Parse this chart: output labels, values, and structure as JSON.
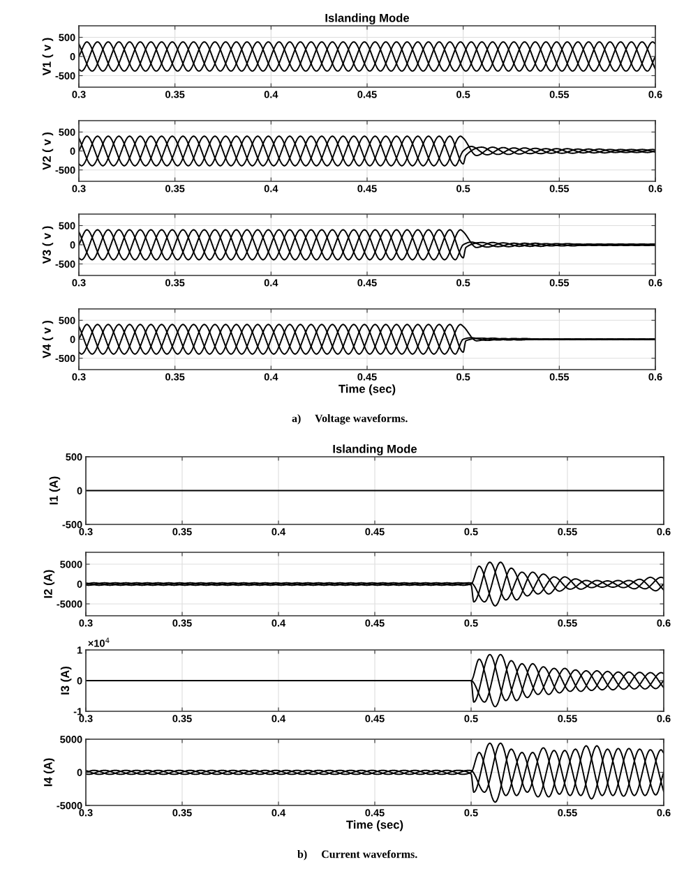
{
  "chart_data": [
    {
      "type": "line",
      "title": "Islanding Mode",
      "ylabel": "V1 ( v )",
      "xlim": [
        0.3,
        0.6
      ],
      "ylim": [
        -800,
        800
      ],
      "xticks": [
        0.3,
        0.35,
        0.4,
        0.45,
        0.5,
        0.55,
        0.6
      ],
      "yticks": [
        -500,
        0,
        500
      ],
      "grid": true,
      "series": [
        {
          "color": "#000000",
          "x": [
            0.3,
            0.30417,
            0.3125,
            0.32083,
            0.32917,
            0.3375,
            0.34583,
            0.35417,
            0.3625,
            0.37083,
            0.37917,
            0.3875,
            0.39583,
            0.40417,
            0.4125,
            0.42083,
            0.42917,
            0.4375,
            0.44583,
            0.45417,
            0.4625,
            0.47083,
            0.47917,
            0.4875,
            0.49583,
            0.50417,
            0.5125,
            0.52083,
            0.52917,
            0.5375,
            0.54583,
            0.55417,
            0.5625,
            0.57083,
            0.57917,
            0.5875,
            0.59583,
            0.6
          ],
          "values": [
            0,
            380,
            -380,
            380,
            -380,
            380,
            -380,
            380,
            -380,
            380,
            -380,
            380,
            -380,
            380,
            -380,
            380,
            -380,
            380,
            -380,
            380,
            -380,
            380,
            -380,
            380,
            -380,
            380,
            -380,
            380,
            -380,
            380,
            -380,
            380,
            -380,
            380,
            -380,
            380,
            -380,
            0
          ]
        },
        {
          "color": "#000000",
          "x": [
            0.3,
            0.30139,
            0.30972,
            0.31806,
            0.32639,
            0.33472,
            0.34306,
            0.35139,
            0.35972,
            0.36806,
            0.37639,
            0.38472,
            0.39306,
            0.40139,
            0.40972,
            0.41806,
            0.42639,
            0.43472,
            0.44306,
            0.45139,
            0.45972,
            0.46806,
            0.47639,
            0.48472,
            0.49306,
            0.50139,
            0.50972,
            0.51806,
            0.52639,
            0.53472,
            0.54306,
            0.55139,
            0.55972,
            0.56806,
            0.57639,
            0.58472,
            0.59306,
            0.6
          ],
          "values": [
            -330,
            -380,
            380,
            -380,
            380,
            -380,
            380,
            -380,
            380,
            -380,
            380,
            -380,
            380,
            -380,
            380,
            -380,
            380,
            -380,
            380,
            -380,
            380,
            -380,
            380,
            -380,
            380,
            -380,
            380,
            -380,
            380,
            -380,
            380,
            -380,
            380,
            -380,
            380,
            -380,
            380,
            -330
          ]
        },
        {
          "color": "#000000",
          "x": [
            0.3,
            0.30694,
            0.31528,
            0.32361,
            0.33194,
            0.34028,
            0.34861,
            0.35694,
            0.36528,
            0.37361,
            0.38194,
            0.39028,
            0.39861,
            0.40694,
            0.41528,
            0.42361,
            0.43194,
            0.44028,
            0.44861,
            0.45694,
            0.46528,
            0.47361,
            0.48194,
            0.49028,
            0.49861,
            0.50694,
            0.51528,
            0.52361,
            0.53194,
            0.54028,
            0.54861,
            0.55694,
            0.56528,
            0.57361,
            0.58194,
            0.59028,
            0.59861,
            0.6
          ],
          "values": [
            330,
            -380,
            380,
            -380,
            380,
            -380,
            380,
            -380,
            380,
            -380,
            380,
            -380,
            380,
            -380,
            380,
            -380,
            380,
            -380,
            380,
            -380,
            380,
            -380,
            380,
            -380,
            380,
            -380,
            380,
            -380,
            380,
            -380,
            380,
            -380,
            380,
            -380,
            380,
            -380,
            380,
            330
          ]
        }
      ]
    },
    {
      "type": "line",
      "ylabel": "V2 ( v )",
      "xlim": [
        0.3,
        0.6
      ],
      "ylim": [
        -800,
        800
      ],
      "xticks": [
        0.3,
        0.35,
        0.4,
        0.45,
        0.5,
        0.55,
        0.6
      ],
      "yticks": [
        -500,
        0,
        500
      ],
      "grid": true,
      "series": [
        {
          "color": "#000000",
          "x": [
            0.3,
            0.30417,
            0.3125,
            0.32083,
            0.32917,
            0.3375,
            0.34583,
            0.35417,
            0.3625,
            0.37083,
            0.37917,
            0.3875,
            0.39583,
            0.40417,
            0.4125,
            0.42083,
            0.42917,
            0.4375,
            0.44583,
            0.45417,
            0.4625,
            0.47083,
            0.47917,
            0.4875,
            0.49583,
            0.5,
            0.50417,
            0.5125,
            0.52083,
            0.52917,
            0.5375,
            0.54583,
            0.55417,
            0.5625,
            0.57083,
            0.57917,
            0.5875,
            0.59583,
            0.6
          ],
          "values": [
            0,
            390,
            -390,
            390,
            -390,
            390,
            -390,
            390,
            -390,
            390,
            -390,
            390,
            -390,
            390,
            -390,
            390,
            -390,
            390,
            -390,
            390,
            -390,
            390,
            -390,
            390,
            -390,
            0,
            120,
            -100,
            90,
            -80,
            70,
            -60,
            60,
            -50,
            50,
            -40,
            40,
            -40,
            0
          ]
        },
        {
          "color": "#000000",
          "x": [
            0.3,
            0.30139,
            0.30972,
            0.31806,
            0.32639,
            0.33472,
            0.34306,
            0.35139,
            0.35972,
            0.36806,
            0.37639,
            0.38472,
            0.39306,
            0.40139,
            0.40972,
            0.41806,
            0.42639,
            0.43472,
            0.44306,
            0.45139,
            0.45972,
            0.46806,
            0.47639,
            0.48472,
            0.49306,
            0.5,
            0.50139,
            0.50972,
            0.51806,
            0.52639,
            0.53472,
            0.54306,
            0.55139,
            0.55972,
            0.56806,
            0.57639,
            0.58472,
            0.59306,
            0.6
          ],
          "values": [
            -340,
            -390,
            390,
            -390,
            390,
            -390,
            390,
            -390,
            390,
            -390,
            390,
            -390,
            390,
            -390,
            390,
            -390,
            390,
            -390,
            390,
            -390,
            390,
            -390,
            390,
            -390,
            390,
            -340,
            -120,
            100,
            -90,
            80,
            -70,
            60,
            -60,
            50,
            -50,
            40,
            -40,
            40,
            -30
          ]
        },
        {
          "color": "#000000",
          "x": [
            0.3,
            0.30694,
            0.31528,
            0.32361,
            0.33194,
            0.34028,
            0.34861,
            0.35694,
            0.36528,
            0.37361,
            0.38194,
            0.39028,
            0.39861,
            0.40694,
            0.41528,
            0.42361,
            0.43194,
            0.44028,
            0.44861,
            0.45694,
            0.46528,
            0.47361,
            0.48194,
            0.49028,
            0.49861,
            0.5,
            0.50694,
            0.51528,
            0.52361,
            0.53194,
            0.54028,
            0.54861,
            0.55694,
            0.56528,
            0.57361,
            0.58194,
            0.59028,
            0.59861,
            0.6
          ],
          "values": [
            340,
            -390,
            390,
            -390,
            390,
            -390,
            390,
            -390,
            390,
            -390,
            390,
            -390,
            390,
            -390,
            390,
            -390,
            390,
            -390,
            390,
            -390,
            390,
            -390,
            390,
            -390,
            390,
            340,
            -120,
            100,
            -90,
            80,
            -70,
            60,
            -60,
            50,
            -50,
            40,
            -40,
            40,
            30
          ]
        }
      ]
    },
    {
      "type": "line",
      "ylabel": "V3 ( v )",
      "xlim": [
        0.3,
        0.6
      ],
      "ylim": [
        -800,
        800
      ],
      "xticks": [
        0.3,
        0.35,
        0.4,
        0.45,
        0.5,
        0.55,
        0.6
      ],
      "yticks": [
        -500,
        0,
        500
      ],
      "grid": true,
      "series": [
        {
          "color": "#000000",
          "x": [
            0.3,
            0.30417,
            0.3125,
            0.32083,
            0.32917,
            0.3375,
            0.34583,
            0.35417,
            0.3625,
            0.37083,
            0.37917,
            0.3875,
            0.39583,
            0.40417,
            0.4125,
            0.42083,
            0.42917,
            0.4375,
            0.44583,
            0.45417,
            0.4625,
            0.47083,
            0.47917,
            0.4875,
            0.49583,
            0.5,
            0.50417,
            0.5125,
            0.52083,
            0.52917,
            0.5375,
            0.54583,
            0.55417,
            0.5625,
            0.57083,
            0.57917,
            0.5875,
            0.59583,
            0.6
          ],
          "values": [
            0,
            390,
            -390,
            390,
            -390,
            390,
            -390,
            390,
            -390,
            390,
            -390,
            390,
            -390,
            390,
            -390,
            390,
            -390,
            390,
            -390,
            390,
            -390,
            390,
            -390,
            390,
            -390,
            0,
            70,
            -60,
            50,
            -40,
            40,
            -30,
            30,
            -20,
            20,
            -20,
            20,
            -20,
            0
          ]
        },
        {
          "color": "#000000",
          "x": [
            0.3,
            0.30139,
            0.30972,
            0.31806,
            0.32639,
            0.33472,
            0.34306,
            0.35139,
            0.35972,
            0.36806,
            0.37639,
            0.38472,
            0.39306,
            0.40139,
            0.40972,
            0.41806,
            0.42639,
            0.43472,
            0.44306,
            0.45139,
            0.45972,
            0.46806,
            0.47639,
            0.48472,
            0.49306,
            0.5,
            0.50139,
            0.50972,
            0.51806,
            0.52639,
            0.53472,
            0.54306,
            0.55139,
            0.55972,
            0.56806,
            0.57639,
            0.58472,
            0.59306,
            0.6
          ],
          "values": [
            -340,
            -390,
            390,
            -390,
            390,
            -390,
            390,
            -390,
            390,
            -390,
            390,
            -390,
            390,
            -390,
            390,
            -390,
            390,
            -390,
            390,
            -390,
            390,
            -390,
            390,
            -390,
            390,
            -340,
            -70,
            60,
            -50,
            40,
            -40,
            30,
            -30,
            20,
            -20,
            20,
            -20,
            20,
            -20
          ]
        },
        {
          "color": "#000000",
          "x": [
            0.3,
            0.30694,
            0.31528,
            0.32361,
            0.33194,
            0.34028,
            0.34861,
            0.35694,
            0.36528,
            0.37361,
            0.38194,
            0.39028,
            0.39861,
            0.40694,
            0.41528,
            0.42361,
            0.43194,
            0.44028,
            0.44861,
            0.45694,
            0.46528,
            0.47361,
            0.48194,
            0.49028,
            0.49861,
            0.5,
            0.50694,
            0.51528,
            0.52361,
            0.53194,
            0.54028,
            0.54861,
            0.55694,
            0.56528,
            0.57361,
            0.58194,
            0.59028,
            0.59861,
            0.6
          ],
          "values": [
            340,
            -390,
            390,
            -390,
            390,
            -390,
            390,
            -390,
            390,
            -390,
            390,
            -390,
            390,
            -390,
            390,
            -390,
            390,
            -390,
            390,
            -390,
            390,
            -390,
            390,
            -390,
            390,
            340,
            -70,
            60,
            -50,
            40,
            -40,
            30,
            -30,
            20,
            -20,
            20,
            -20,
            20,
            20
          ]
        }
      ]
    },
    {
      "type": "line",
      "ylabel": "V4 ( v )",
      "xlabel": "Time (sec)",
      "annotations": [
        "a)     Voltage waveforms."
      ],
      "xlim": [
        0.3,
        0.6
      ],
      "ylim": [
        -800,
        800
      ],
      "xticks": [
        0.3,
        0.35,
        0.4,
        0.45,
        0.5,
        0.55,
        0.6
      ],
      "yticks": [
        -500,
        0,
        500
      ],
      "grid": true,
      "series": [
        {
          "color": "#000000",
          "x": [
            0.3,
            0.30417,
            0.3125,
            0.32083,
            0.32917,
            0.3375,
            0.34583,
            0.35417,
            0.3625,
            0.37083,
            0.37917,
            0.3875,
            0.39583,
            0.40417,
            0.4125,
            0.42083,
            0.42917,
            0.4375,
            0.44583,
            0.45417,
            0.4625,
            0.47083,
            0.47917,
            0.4875,
            0.49583,
            0.5,
            0.50417,
            0.5125,
            0.52083,
            0.52917,
            0.5375,
            0.54583,
            0.55417,
            0.5625,
            0.57083,
            0.57917,
            0.5875,
            0.59583,
            0.6
          ],
          "values": [
            0,
            390,
            -390,
            390,
            -390,
            390,
            -390,
            390,
            -390,
            390,
            -390,
            390,
            -390,
            390,
            -390,
            390,
            -390,
            390,
            -390,
            390,
            -390,
            390,
            -390,
            390,
            -390,
            0,
            40,
            -30,
            20,
            -20,
            10,
            -10,
            10,
            -10,
            10,
            -10,
            10,
            -10,
            0
          ]
        },
        {
          "color": "#000000",
          "x": [
            0.3,
            0.30139,
            0.30972,
            0.31806,
            0.32639,
            0.33472,
            0.34306,
            0.35139,
            0.35972,
            0.36806,
            0.37639,
            0.38472,
            0.39306,
            0.40139,
            0.40972,
            0.41806,
            0.42639,
            0.43472,
            0.44306,
            0.45139,
            0.45972,
            0.46806,
            0.47639,
            0.48472,
            0.49306,
            0.5,
            0.50139,
            0.50972,
            0.51806,
            0.52639,
            0.53472,
            0.54306,
            0.55139,
            0.55972,
            0.56806,
            0.57639,
            0.58472,
            0.59306,
            0.6
          ],
          "values": [
            -340,
            -390,
            390,
            -390,
            390,
            -390,
            390,
            -390,
            390,
            -390,
            390,
            -390,
            390,
            -390,
            390,
            -390,
            390,
            -390,
            390,
            -390,
            390,
            -390,
            390,
            -390,
            390,
            -340,
            -40,
            30,
            -20,
            20,
            -10,
            10,
            -10,
            10,
            -10,
            10,
            -10,
            10,
            -10
          ]
        },
        {
          "color": "#000000",
          "x": [
            0.3,
            0.30694,
            0.31528,
            0.32361,
            0.33194,
            0.34028,
            0.34861,
            0.35694,
            0.36528,
            0.37361,
            0.38194,
            0.39028,
            0.39861,
            0.40694,
            0.41528,
            0.42361,
            0.43194,
            0.44028,
            0.44861,
            0.45694,
            0.46528,
            0.47361,
            0.48194,
            0.49028,
            0.49861,
            0.5,
            0.50694,
            0.51528,
            0.52361,
            0.53194,
            0.54028,
            0.54861,
            0.55694,
            0.56528,
            0.57361,
            0.58194,
            0.59028,
            0.59861,
            0.6
          ],
          "values": [
            340,
            -390,
            390,
            -390,
            390,
            -390,
            390,
            -390,
            390,
            -390,
            390,
            -390,
            390,
            -390,
            390,
            -390,
            390,
            -390,
            390,
            -390,
            390,
            -390,
            390,
            -390,
            390,
            340,
            -40,
            30,
            -20,
            20,
            -10,
            10,
            -10,
            10,
            -10,
            10,
            -10,
            10,
            10
          ]
        }
      ]
    },
    {
      "type": "line",
      "title": "Islanding Mode",
      "ylabel": "I1 (A)",
      "xlim": [
        0.3,
        0.6
      ],
      "ylim": [
        -500,
        500
      ],
      "xticks": [
        0.3,
        0.35,
        0.4,
        0.45,
        0.5,
        0.55,
        0.6
      ],
      "yticks": [
        -500,
        0,
        500
      ],
      "grid": true,
      "series": [
        {
          "color": "#000000",
          "x": [
            0.3,
            0.6
          ],
          "values": [
            0,
            0
          ]
        }
      ]
    },
    {
      "type": "line",
      "ylabel": "I2 (A)",
      "xlim": [
        0.3,
        0.6
      ],
      "ylim": [
        -8000,
        8000
      ],
      "xticks": [
        0.3,
        0.35,
        0.4,
        0.45,
        0.5,
        0.55,
        0.6
      ],
      "yticks": [
        -5000,
        0,
        5000
      ],
      "grid": true,
      "series": [
        {
          "color": "#000000",
          "x": [
            0.3,
            0.30417,
            0.3125,
            0.32083,
            0.32917,
            0.3375,
            0.34583,
            0.35417,
            0.3625,
            0.37083,
            0.37917,
            0.3875,
            0.39583,
            0.40417,
            0.4125,
            0.42083,
            0.42917,
            0.4375,
            0.44583,
            0.45417,
            0.4625,
            0.47083,
            0.47917,
            0.4875,
            0.49583,
            0.5,
            0.50417,
            0.5125,
            0.52083,
            0.52917,
            0.5375,
            0.54583,
            0.55417,
            0.5625,
            0.57083,
            0.57917,
            0.5875,
            0.59583,
            0.6
          ],
          "values": [
            0,
            300,
            -300,
            300,
            -300,
            300,
            -300,
            300,
            -300,
            300,
            -300,
            300,
            -300,
            300,
            -300,
            300,
            -300,
            300,
            -300,
            300,
            -300,
            300,
            -300,
            300,
            -300,
            0,
            4500,
            -5500,
            4000,
            -3000,
            2500,
            -1800,
            1300,
            -900,
            800,
            -900,
            1200,
            -1700,
            0
          ]
        },
        {
          "color": "#000000",
          "x": [
            0.3,
            0.30139,
            0.30972,
            0.31806,
            0.32639,
            0.33472,
            0.34306,
            0.35139,
            0.35972,
            0.36806,
            0.37639,
            0.38472,
            0.39306,
            0.40139,
            0.40972,
            0.41806,
            0.42639,
            0.43472,
            0.44306,
            0.45139,
            0.45972,
            0.46806,
            0.47639,
            0.48472,
            0.49306,
            0.5,
            0.50139,
            0.50972,
            0.51806,
            0.52639,
            0.53472,
            0.54306,
            0.55139,
            0.55972,
            0.56806,
            0.57639,
            0.58472,
            0.59306,
            0.6
          ],
          "values": [
            -260,
            -300,
            300,
            -300,
            300,
            -300,
            300,
            -300,
            300,
            -300,
            300,
            -300,
            300,
            -300,
            300,
            -300,
            300,
            -300,
            300,
            -300,
            300,
            -300,
            300,
            -300,
            300,
            -260,
            -4500,
            5500,
            -4000,
            3000,
            -2500,
            1800,
            -1300,
            900,
            -800,
            900,
            -1200,
            1700,
            -1500
          ]
        },
        {
          "color": "#000000",
          "x": [
            0.3,
            0.30694,
            0.31528,
            0.32361,
            0.33194,
            0.34028,
            0.34861,
            0.35694,
            0.36528,
            0.37361,
            0.38194,
            0.39028,
            0.39861,
            0.40694,
            0.41528,
            0.42361,
            0.43194,
            0.44028,
            0.44861,
            0.45694,
            0.46528,
            0.47361,
            0.48194,
            0.49028,
            0.49861,
            0.5,
            0.50694,
            0.51528,
            0.52361,
            0.53194,
            0.54028,
            0.54861,
            0.55694,
            0.56528,
            0.57361,
            0.58194,
            0.59028,
            0.59861,
            0.6
          ],
          "values": [
            260,
            -300,
            300,
            -300,
            300,
            -300,
            300,
            -300,
            300,
            -300,
            300,
            -300,
            300,
            -300,
            300,
            -300,
            300,
            -300,
            300,
            -300,
            300,
            -300,
            300,
            -300,
            300,
            260,
            -4500,
            5500,
            -4000,
            3000,
            -2500,
            1800,
            -1300,
            900,
            -800,
            900,
            -1200,
            1700,
            1500
          ]
        }
      ]
    },
    {
      "type": "line",
      "ylabel": "I3 (A)",
      "annotations": [
        "×10$^{4}$"
      ],
      "xlim": [
        0.3,
        0.6
      ],
      "ylim": [
        -1,
        1
      ],
      "xticks": [
        0.3,
        0.35,
        0.4,
        0.45,
        0.5,
        0.55,
        0.6
      ],
      "yticks": [
        -1,
        0,
        1
      ],
      "grid": true,
      "series": [
        {
          "color": "#000000",
          "x": [
            0.3,
            0.5,
            0.50417,
            0.5125,
            0.52083,
            0.52917,
            0.5375,
            0.54583,
            0.55417,
            0.5625,
            0.57083,
            0.57917,
            0.5875,
            0.59583,
            0.6
          ],
          "values": [
            0,
            0,
            0.7,
            -0.85,
            0.65,
            -0.55,
            0.45,
            -0.4,
            0.35,
            -0.32,
            0.3,
            -0.28,
            0.27,
            -0.26,
            0
          ]
        },
        {
          "color": "#000000",
          "x": [
            0.3,
            0.5,
            0.50139,
            0.50972,
            0.51806,
            0.52639,
            0.53472,
            0.54306,
            0.55139,
            0.55972,
            0.56806,
            0.57639,
            0.58472,
            0.59306,
            0.6
          ],
          "values": [
            0,
            0,
            -0.7,
            0.85,
            -0.65,
            0.55,
            -0.45,
            0.4,
            -0.35,
            0.32,
            -0.3,
            0.28,
            -0.27,
            0.26,
            -0.23
          ]
        },
        {
          "color": "#000000",
          "x": [
            0.3,
            0.5,
            0.50694,
            0.51528,
            0.52361,
            0.53194,
            0.54028,
            0.54861,
            0.55694,
            0.56528,
            0.57361,
            0.58194,
            0.59028,
            0.59861,
            0.6
          ],
          "values": [
            0,
            0,
            -0.7,
            0.85,
            -0.65,
            0.55,
            -0.45,
            0.4,
            -0.35,
            0.32,
            -0.3,
            0.28,
            -0.27,
            0.26,
            0.23
          ]
        }
      ]
    },
    {
      "type": "line",
      "ylabel": "I4 (A)",
      "xlabel": "Time (sec)",
      "annotations": [
        "b)     Current waveforms."
      ],
      "xlim": [
        0.3,
        0.6
      ],
      "ylim": [
        -5000,
        5000
      ],
      "xticks": [
        0.3,
        0.35,
        0.4,
        0.45,
        0.5,
        0.55,
        0.6
      ],
      "yticks": [
        -5000,
        0,
        5000
      ],
      "grid": true,
      "series": [
        {
          "color": "#000000",
          "x": [
            0.3,
            0.30417,
            0.3125,
            0.32083,
            0.32917,
            0.3375,
            0.34583,
            0.35417,
            0.3625,
            0.37083,
            0.37917,
            0.3875,
            0.39583,
            0.40417,
            0.4125,
            0.42083,
            0.42917,
            0.4375,
            0.44583,
            0.45417,
            0.4625,
            0.47083,
            0.47917,
            0.4875,
            0.49583,
            0.5,
            0.50417,
            0.5125,
            0.52083,
            0.52917,
            0.5375,
            0.54583,
            0.55417,
            0.5625,
            0.57083,
            0.57917,
            0.5875,
            0.59583,
            0.6
          ],
          "values": [
            0,
            300,
            -300,
            300,
            -300,
            300,
            -300,
            300,
            -300,
            300,
            -300,
            300,
            -300,
            300,
            -300,
            300,
            -300,
            300,
            -300,
            300,
            -300,
            300,
            -300,
            300,
            -300,
            0,
            3000,
            -4500,
            3500,
            -3000,
            3700,
            -3300,
            3500,
            -4000,
            3500,
            -3600,
            3500,
            -3400,
            0
          ]
        },
        {
          "color": "#000000",
          "x": [
            0.3,
            0.30139,
            0.30972,
            0.31806,
            0.32639,
            0.33472,
            0.34306,
            0.35139,
            0.35972,
            0.36806,
            0.37639,
            0.38472,
            0.39306,
            0.40139,
            0.40972,
            0.41806,
            0.42639,
            0.43472,
            0.44306,
            0.45139,
            0.45972,
            0.46806,
            0.47639,
            0.48472,
            0.49306,
            0.5,
            0.50139,
            0.50972,
            0.51806,
            0.52639,
            0.53472,
            0.54306,
            0.55139,
            0.55972,
            0.56806,
            0.57639,
            0.58472,
            0.59306,
            0.6
          ],
          "values": [
            -260,
            -300,
            300,
            -300,
            300,
            -300,
            300,
            -300,
            300,
            -300,
            300,
            -300,
            300,
            -300,
            300,
            -300,
            300,
            -300,
            300,
            -300,
            300,
            -300,
            300,
            -300,
            300,
            -260,
            -3000,
            4400,
            -3500,
            3000,
            -3700,
            3300,
            -3500,
            4000,
            -3500,
            3600,
            -3500,
            3400,
            -2900
          ]
        },
        {
          "color": "#000000",
          "x": [
            0.3,
            0.30694,
            0.31528,
            0.32361,
            0.33194,
            0.34028,
            0.34861,
            0.35694,
            0.36528,
            0.37361,
            0.38194,
            0.39028,
            0.39861,
            0.40694,
            0.41528,
            0.42361,
            0.43194,
            0.44028,
            0.44861,
            0.45694,
            0.46528,
            0.47361,
            0.48194,
            0.49028,
            0.49861,
            0.5,
            0.50694,
            0.51528,
            0.52361,
            0.53194,
            0.54028,
            0.54861,
            0.55694,
            0.56528,
            0.57361,
            0.58194,
            0.59028,
            0.59861,
            0.6
          ],
          "values": [
            260,
            -300,
            300,
            -300,
            300,
            -300,
            300,
            -300,
            300,
            -300,
            300,
            -300,
            300,
            -300,
            300,
            -300,
            300,
            -300,
            300,
            -300,
            300,
            -300,
            300,
            -300,
            300,
            260,
            -3000,
            4400,
            -3500,
            3000,
            -3700,
            3300,
            -3500,
            4000,
            -3500,
            3600,
            -3500,
            3400,
            2900
          ]
        }
      ]
    }
  ]
}
